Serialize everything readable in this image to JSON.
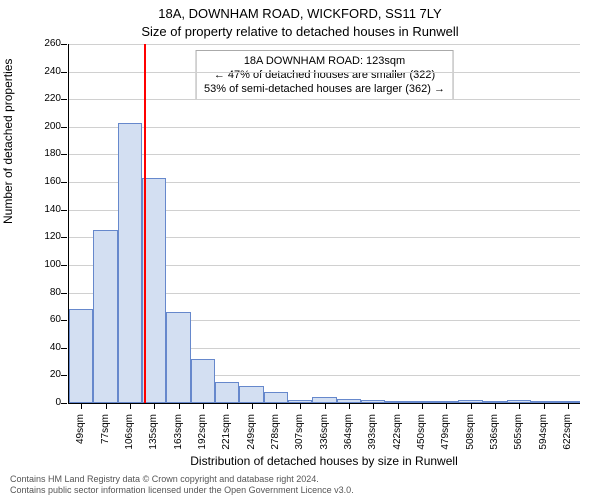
{
  "title_line1": "18A, DOWNHAM ROAD, WICKFORD, SS11 7LY",
  "title_line2": "Size of property relative to detached houses in Runwell",
  "yaxis_title": "Number of detached properties",
  "xaxis_title": "Distribution of detached houses by size in Runwell",
  "footer_line1": "Contains HM Land Registry data © Crown copyright and database right 2024.",
  "footer_line2": "Contains public sector information licensed under the Open Government Licence v3.0.",
  "info_box": {
    "line1": "18A DOWNHAM ROAD: 123sqm",
    "line2": "← 47% of detached houses are smaller (322)",
    "line3": "53% of semi-detached houses are larger (362) →"
  },
  "chart": {
    "type": "histogram",
    "categories": [
      "49sqm",
      "77sqm",
      "106sqm",
      "135sqm",
      "163sqm",
      "192sqm",
      "221sqm",
      "249sqm",
      "278sqm",
      "307sqm",
      "336sqm",
      "364sqm",
      "393sqm",
      "422sqm",
      "450sqm",
      "479sqm",
      "508sqm",
      "536sqm",
      "565sqm",
      "594sqm",
      "622sqm"
    ],
    "values": [
      68,
      125,
      203,
      163,
      66,
      32,
      15,
      12,
      8,
      2,
      4,
      3,
      2,
      0,
      0,
      0,
      2,
      0,
      2,
      0,
      0
    ],
    "bar_fill": "#d3dff2",
    "bar_stroke": "#6688cc",
    "bar_width_ratio": 1.0,
    "ylim": [
      0,
      260
    ],
    "ytick_step": 20,
    "grid_color": "#d0d0d0",
    "background": "#ffffff",
    "axis_color": "#000000",
    "tick_font_size": 10,
    "ref_line": {
      "position_index": 2.6,
      "color": "#ff0000",
      "width": 2
    }
  },
  "title_font_size": 13,
  "axis_title_font_size": 12,
  "footer_font_size": 9,
  "footer_color": "#555555"
}
